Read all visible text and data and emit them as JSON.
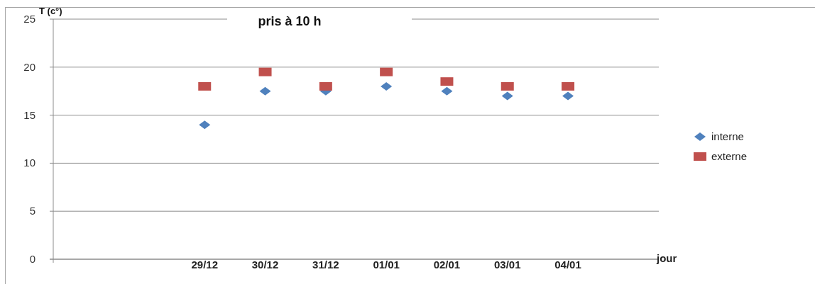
{
  "chart_data": {
    "type": "scatter",
    "title": "pris à 10 h",
    "ylabel": "T (c°)",
    "xlabel": "jour",
    "categories": [
      null,
      null,
      "29/12",
      "30/12",
      "31/12",
      "01/01",
      "02/01",
      "03/01",
      "04/01",
      null
    ],
    "series": [
      {
        "name": "interne",
        "color": "#4f81bd",
        "marker": "diamond",
        "values": [
          null,
          null,
          14,
          17.5,
          17.5,
          18,
          17.5,
          17,
          17,
          null
        ]
      },
      {
        "name": "externe",
        "color": "#c0504d",
        "marker": "square",
        "values": [
          null,
          null,
          18,
          19.5,
          18,
          19.5,
          18.5,
          18,
          18,
          null
        ]
      }
    ],
    "ylim": [
      0,
      25
    ],
    "yticks": [
      0,
      5,
      10,
      15,
      20,
      25
    ],
    "grid": "y",
    "legend": "right"
  }
}
